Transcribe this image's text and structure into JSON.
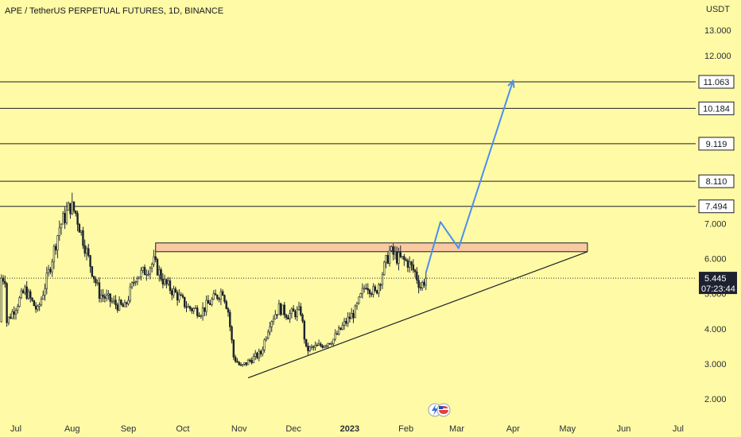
{
  "header": {
    "title": "APE / TetherUS PERPETUAL FUTURES, 1D, BINANCE",
    "currency": "USDT"
  },
  "chart_data": {
    "type": "candlestick",
    "title": "APE / TetherUS PERPETUAL FUTURES, 1D, BINANCE",
    "x_ticks": [
      {
        "label": "Jul",
        "day": 0
      },
      {
        "label": "Aug",
        "day": 31
      },
      {
        "label": "Sep",
        "day": 62
      },
      {
        "label": "Oct",
        "day": 92
      },
      {
        "label": "Nov",
        "day": 123
      },
      {
        "label": "Dec",
        "day": 153
      },
      {
        "label": "2023",
        "day": 184
      },
      {
        "label": "Feb",
        "day": 215
      },
      {
        "label": "Mar",
        "day": 243
      },
      {
        "label": "Apr",
        "day": 274
      },
      {
        "label": "May",
        "day": 304
      },
      {
        "label": "Jun",
        "day": 335
      },
      {
        "label": "Jul",
        "day": 365
      }
    ],
    "y_ticks": [
      "2.000",
      "3.000",
      "4.000",
      "5.000",
      "6.000",
      "7.000",
      "12.000",
      "13.000"
    ],
    "ylim": [
      1.75,
      13.6
    ],
    "price_keypoints": [
      [
        -5,
        4.2
      ],
      [
        5,
        5.1
      ],
      [
        12,
        4.5
      ],
      [
        18,
        5.6
      ],
      [
        24,
        6.9
      ],
      [
        30,
        7.5
      ],
      [
        33,
        7.3
      ],
      [
        40,
        6.0
      ],
      [
        46,
        5.0
      ],
      [
        55,
        4.7
      ],
      [
        60,
        4.6
      ],
      [
        66,
        5.5
      ],
      [
        70,
        5.6
      ],
      [
        76,
        5.9
      ],
      [
        82,
        5.3
      ],
      [
        88,
        5.0
      ],
      [
        95,
        4.6
      ],
      [
        102,
        4.5
      ],
      [
        110,
        4.9
      ],
      [
        114,
        5.1
      ],
      [
        117,
        4.5
      ],
      [
        120,
        3.2
      ],
      [
        124,
        2.9
      ],
      [
        129,
        3.1
      ],
      [
        135,
        3.3
      ],
      [
        140,
        4.2
      ],
      [
        145,
        4.6
      ],
      [
        150,
        4.4
      ],
      [
        157,
        4.5
      ],
      [
        160,
        3.4
      ],
      [
        167,
        3.5
      ],
      [
        175,
        3.7
      ],
      [
        182,
        4.2
      ],
      [
        187,
        4.5
      ],
      [
        193,
        5.3
      ],
      [
        198,
        5.0
      ],
      [
        202,
        5.6
      ],
      [
        206,
        6.2
      ],
      [
        211,
        6.0
      ],
      [
        216,
        5.9
      ],
      [
        220,
        5.6
      ],
      [
        223,
        5.2
      ],
      [
        226,
        5.45
      ]
    ],
    "horizontal_levels": [
      {
        "value": 11.063,
        "label": "11.063"
      },
      {
        "value": 10.184,
        "label": "10.184"
      },
      {
        "value": 9.119,
        "label": "9.119"
      },
      {
        "value": 8.11,
        "label": "8.110"
      },
      {
        "value": 7.494,
        "label": "7.494"
      }
    ],
    "resistance_zone": {
      "start_day": 77,
      "end_day": 315,
      "bottom": 6.2,
      "top": 6.45,
      "color": "#f8c9a3"
    },
    "trendline": {
      "start": [
        128,
        2.6
      ],
      "end": [
        315,
        6.2
      ]
    },
    "projection_path": [
      [
        226,
        5.6
      ],
      [
        234,
        7.05
      ],
      [
        244,
        6.3
      ],
      [
        274,
        11.1
      ]
    ],
    "last_price": {
      "value": 5.445,
      "label": "5.445",
      "countdown": "07:23:44"
    },
    "colors": {
      "background": "#fffaa5",
      "candle_up": "#26313f",
      "candle_down": "#1d222b",
      "level_line": "#1b1f2a",
      "projection": "#4a8ff0",
      "badge_bg": "#1e2230"
    }
  }
}
